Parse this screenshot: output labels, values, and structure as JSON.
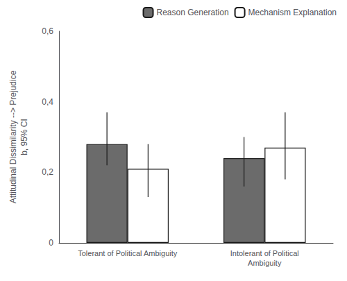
{
  "chart_data": {
    "type": "bar",
    "categories": [
      "Tolerant of Political Ambiguity",
      "Intolerant of Political\nAmbiguity"
    ],
    "series": [
      {
        "name": "Reason Generation",
        "color": "#6b6b6b",
        "values": [
          0.28,
          0.24
        ],
        "ci_low": [
          0.22,
          0.16
        ],
        "ci_high": [
          0.37,
          0.3
        ]
      },
      {
        "name": "Mechanism Explanation",
        "color": "#ffffff",
        "values": [
          0.21,
          0.27
        ],
        "ci_low": [
          0.13,
          0.18
        ],
        "ci_high": [
          0.28,
          0.37
        ]
      }
    ],
    "ylabel": "Attitudinal Dissimilarity --> Prejudice\nb, 95% CI",
    "ylim": [
      0,
      0.6
    ],
    "yticks": [
      0,
      {
        "value": 0.2,
        "label": "0,2"
      },
      {
        "value": 0.4,
        "label": "0,4"
      },
      {
        "value": 0.6,
        "label": "0,6"
      }
    ],
    "grid": false,
    "legend": "upper right"
  }
}
